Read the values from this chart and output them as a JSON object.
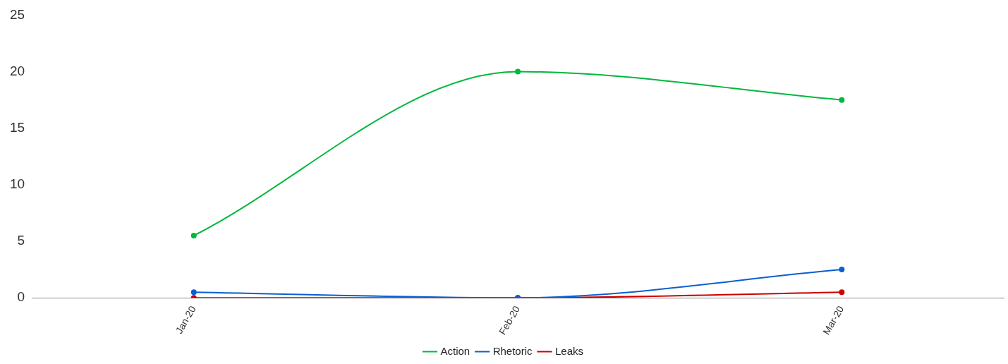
{
  "chart_data": {
    "type": "line",
    "categories": [
      "Jan-20",
      "Feb-20",
      "Mar-20"
    ],
    "series": [
      {
        "name": "Action",
        "color": "#00b83c",
        "values": [
          5.5,
          20,
          17.5
        ]
      },
      {
        "name": "Rhetoric",
        "color": "#0a5fd0",
        "values": [
          0.5,
          0,
          2.5
        ]
      },
      {
        "name": "Leaks",
        "color": "#cc0000",
        "values": [
          0,
          0,
          0.5
        ]
      }
    ],
    "ylim": [
      0,
      25
    ],
    "yticks": [
      0,
      5,
      10,
      15,
      20,
      25
    ],
    "grid": false,
    "legend": "bottom",
    "marker": "circle",
    "line_style": "solid"
  }
}
